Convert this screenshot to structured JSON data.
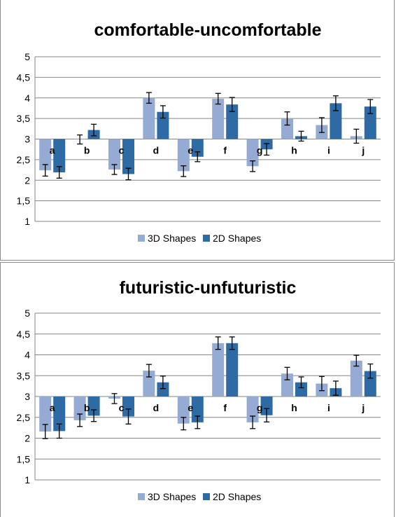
{
  "colors": {
    "series_3d": "#95abd3",
    "series_2d": "#2e6aa4",
    "axis": "#868686",
    "text": "#000000",
    "error": "#000000"
  },
  "chart_data": [
    {
      "type": "bar",
      "title": "comfortable-uncomfortable",
      "categories": [
        "a",
        "b",
        "c",
        "d",
        "e",
        "f",
        "g",
        "h",
        "i",
        "j"
      ],
      "baseline": 3,
      "ylim": [
        1,
        5
      ],
      "yticks": [
        "1",
        "1,5",
        "2",
        "2,5",
        "3",
        "3,5",
        "4",
        "4,5",
        "5"
      ],
      "grid": true,
      "legend_position": "bottom",
      "series": [
        {
          "name": "3D Shapes",
          "values": [
            2.24,
            2.99,
            2.26,
            4.0,
            2.22,
            3.98,
            2.34,
            3.5,
            3.34,
            3.07
          ],
          "errors": [
            0.14,
            0.11,
            0.12,
            0.13,
            0.13,
            0.13,
            0.13,
            0.16,
            0.18,
            0.17
          ]
        },
        {
          "name": "2D Shapes",
          "values": [
            2.19,
            3.22,
            2.15,
            3.66,
            2.57,
            3.84,
            2.75,
            3.07,
            3.87,
            3.79
          ],
          "errors": [
            0.14,
            0.14,
            0.14,
            0.15,
            0.12,
            0.17,
            0.14,
            0.12,
            0.18,
            0.17
          ]
        }
      ]
    },
    {
      "type": "bar",
      "title": "futuristic-unfuturistic",
      "categories": [
        "a",
        "b",
        "c",
        "d",
        "e",
        "f",
        "g",
        "h",
        "i",
        "j"
      ],
      "baseline": 3,
      "ylim": [
        1,
        5
      ],
      "yticks": [
        "1",
        "1,5",
        "2",
        "2,5",
        "3",
        "3,5",
        "4",
        "4,5",
        "5"
      ],
      "grid": true,
      "legend_position": "bottom",
      "series": [
        {
          "name": "3D Shapes",
          "values": [
            2.16,
            2.43,
            2.95,
            3.62,
            2.35,
            4.28,
            2.38,
            3.55,
            3.31,
            3.86
          ],
          "errors": [
            0.17,
            0.15,
            0.12,
            0.15,
            0.15,
            0.15,
            0.15,
            0.15,
            0.17,
            0.13
          ]
        },
        {
          "name": "2D Shapes",
          "values": [
            2.17,
            2.54,
            2.52,
            3.34,
            2.38,
            4.28,
            2.55,
            3.34,
            3.2,
            3.61
          ],
          "errors": [
            0.17,
            0.14,
            0.18,
            0.15,
            0.15,
            0.15,
            0.16,
            0.13,
            0.17,
            0.17
          ]
        }
      ]
    }
  ]
}
